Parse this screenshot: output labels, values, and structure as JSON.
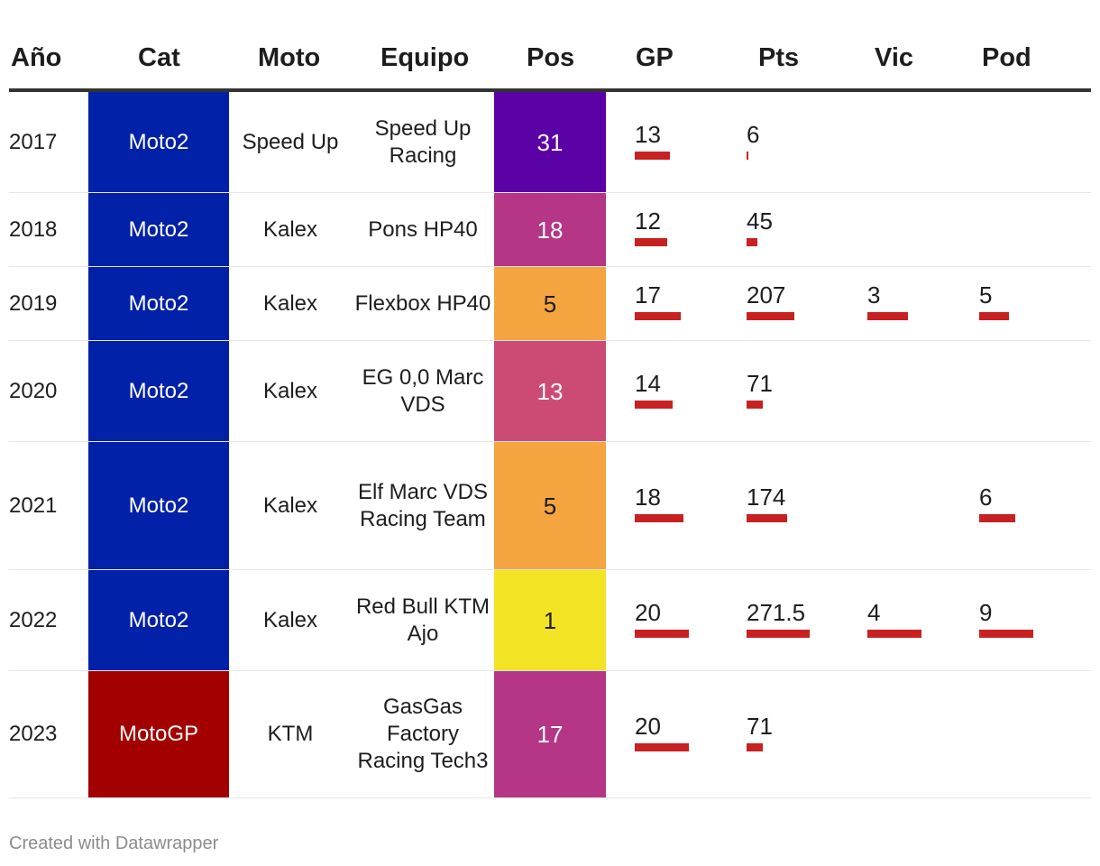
{
  "columns": [
    "Año",
    "Cat",
    "Moto",
    "Equipo",
    "Pos",
    "GP",
    "Pts",
    "Vic",
    "Pod"
  ],
  "colors": {
    "moto2": "#0021a8",
    "motogp": "#a30000",
    "bar": "#c72121",
    "header_rule": "#333333"
  },
  "chart_data": {
    "type": "table",
    "rows": [
      {
        "year": "2017",
        "cat": "Moto2",
        "moto": "Speed Up",
        "team": "Speed Up Racing",
        "pos": "31",
        "pos_color": "#5b02a6",
        "pos_text": "#ffffff",
        "gp": 13,
        "pts": 6,
        "vic": null,
        "pod": null
      },
      {
        "year": "2018",
        "cat": "Moto2",
        "moto": "Kalex",
        "team": "Pons HP40",
        "pos": "18",
        "pos_color": "#b53686",
        "pos_text": "#ffffff",
        "gp": 12,
        "pts": 45,
        "vic": null,
        "pod": null
      },
      {
        "year": "2019",
        "cat": "Moto2",
        "moto": "Kalex",
        "team": "Flexbox HP40",
        "pos": "5",
        "pos_color": "#f5a540",
        "pos_text": "#1d1d1d",
        "gp": 17,
        "pts": 207,
        "vic": 3,
        "pod": 5
      },
      {
        "year": "2020",
        "cat": "Moto2",
        "moto": "Kalex",
        "team": "EG 0,0 Marc VDS",
        "pos": "13",
        "pos_color": "#cc4b74",
        "pos_text": "#ffffff",
        "gp": 14,
        "pts": 71,
        "vic": null,
        "pod": null
      },
      {
        "year": "2021",
        "cat": "Moto2",
        "moto": "Kalex",
        "team": "Elf Marc VDS Racing Team",
        "pos": "5",
        "pos_color": "#f5a540",
        "pos_text": "#1d1d1d",
        "gp": 18,
        "pts": 174,
        "vic": null,
        "pod": 6
      },
      {
        "year": "2022",
        "cat": "Moto2",
        "moto": "Kalex",
        "team": "Red Bull KTM Ajo",
        "pos": "1",
        "pos_color": "#f2e424",
        "pos_text": "#1d1d1d",
        "gp": 20,
        "pts": 271.5,
        "vic": 4,
        "pod": 9
      },
      {
        "year": "2023",
        "cat": "MotoGP",
        "moto": "KTM",
        "team": "GasGas Factory Racing Tech3",
        "pos": "17",
        "pos_color": "#b53686",
        "pos_text": "#ffffff",
        "gp": 20,
        "pts": 71,
        "vic": null,
        "pod": null
      }
    ],
    "bar_max": {
      "gp": 20,
      "pts": 271.5,
      "vic": 4,
      "pod": 9
    }
  },
  "footer": "Created with Datawrapper"
}
